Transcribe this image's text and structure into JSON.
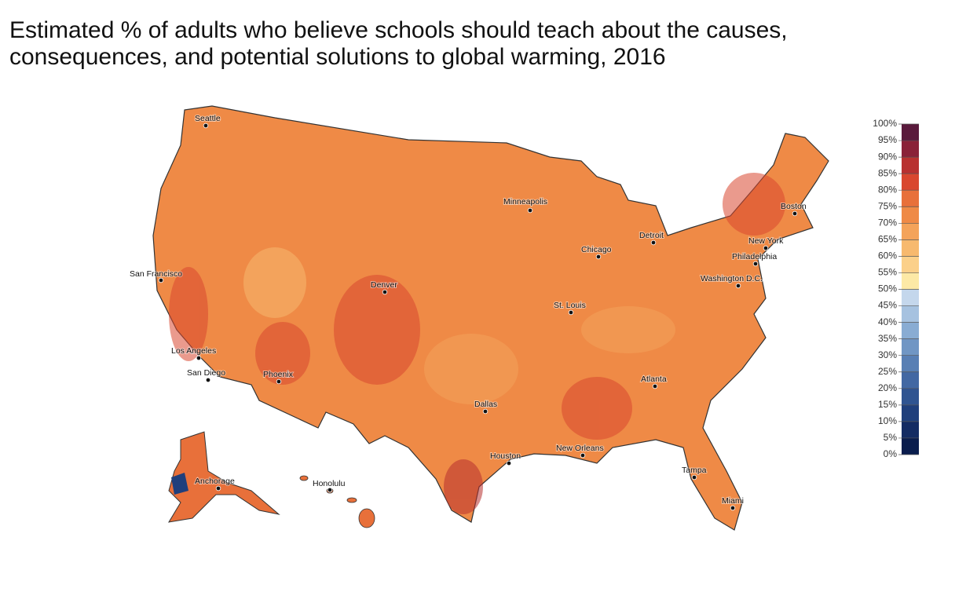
{
  "header": {
    "title": [
      "Estimated % of adults who believe schools should teach about the causes,",
      "consequences, and potential solutions to global warming, 2016"
    ]
  },
  "cities": [
    "Seattle",
    "Minneapolis",
    "Boston",
    "Detroit",
    "New York",
    "Chicago",
    "Philadelphia",
    "San Francisco",
    "Washington D.C.",
    "Denver",
    "St. Louis",
    "Los Angeles",
    "Atlanta",
    "San Diego",
    "Phoenix",
    "Dallas",
    "Houston",
    "New Orleans",
    "Anchorage",
    "Honolulu",
    "Tampa",
    "Miami"
  ],
  "legend": {
    "ticks": [
      {
        "value": 0,
        "label": "0%"
      },
      {
        "value": 5,
        "label": "5%"
      },
      {
        "value": 10,
        "label": "10%"
      },
      {
        "value": 15,
        "label": "15%"
      },
      {
        "value": 20,
        "label": "20%"
      },
      {
        "value": 25,
        "label": "25%"
      },
      {
        "value": 30,
        "label": "30%"
      },
      {
        "value": 35,
        "label": "35%"
      },
      {
        "value": 40,
        "label": "40%"
      },
      {
        "value": 45,
        "label": "45%"
      },
      {
        "value": 50,
        "label": "50%"
      },
      {
        "value": 55,
        "label": "55%"
      },
      {
        "value": 60,
        "label": "60%"
      },
      {
        "value": 65,
        "label": "65%"
      },
      {
        "value": 70,
        "label": "70%"
      },
      {
        "value": 75,
        "label": "75%"
      },
      {
        "value": 80,
        "label": "80%"
      },
      {
        "value": 85,
        "label": "85%"
      },
      {
        "value": 90,
        "label": "90%"
      },
      {
        "value": 95,
        "label": "95%"
      },
      {
        "value": 100,
        "label": "100%"
      }
    ],
    "colors": [
      "#0a1d4d",
      "#142c63",
      "#1f3f7c",
      "#2f5491",
      "#4268a3",
      "#587fb4",
      "#7096c4",
      "#89acd3",
      "#a6c2e0",
      "#c4d7ec",
      "#fde9a6",
      "#fbd08a",
      "#f7b96e",
      "#f4a35a",
      "#ef8a46",
      "#e8703a",
      "#d9472f",
      "#b83130",
      "#8a2238",
      "#5a1a3c"
    ]
  }
}
